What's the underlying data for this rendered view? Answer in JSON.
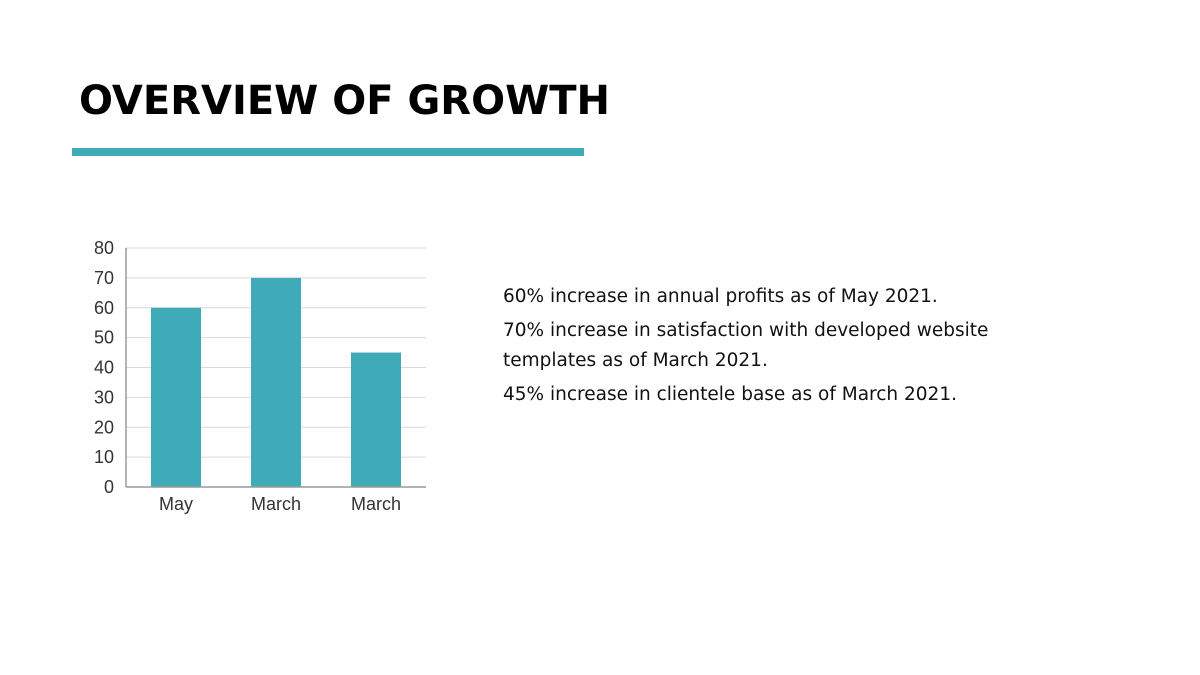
{
  "slide": {
    "title": "OVERVIEW OF GROWTH",
    "accent_color": "#3fabb8"
  },
  "chart_data": {
    "type": "bar",
    "categories": [
      "May",
      "March",
      "March"
    ],
    "values": [
      60,
      70,
      45
    ],
    "title": "",
    "xlabel": "",
    "ylabel": "",
    "ylim": [
      0,
      80
    ],
    "yticks": [
      "0",
      "10",
      "20",
      "30",
      "40",
      "50",
      "60",
      "70",
      "80"
    ],
    "grid": true,
    "bar_color": "#3fabb8"
  },
  "statements": [
    "60% increase in annual profits as of May 2021.",
    "70% increase in satisfaction with developed website templates as of March 2021.",
    "45% increase in clientele base as of March 2021."
  ]
}
